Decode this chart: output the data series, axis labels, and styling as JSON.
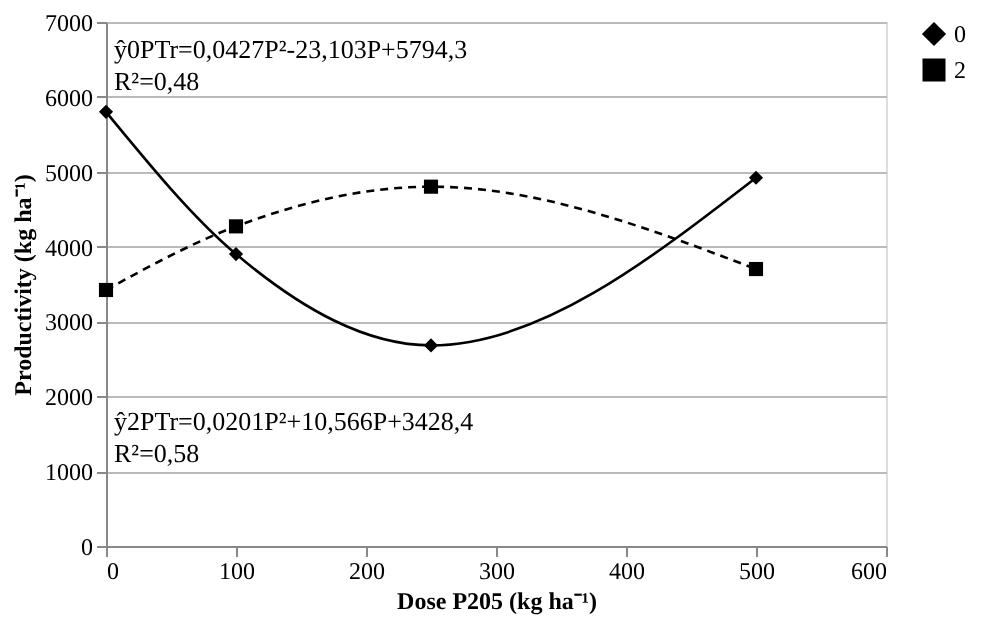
{
  "chart_data": {
    "type": "line",
    "xlabel": "Dose P205  (kg ha⁻¹)",
    "ylabel": "Productivity (kg ha⁻¹)",
    "series": [
      {
        "name": "0",
        "color": "#000000",
        "marker": "diamond",
        "line_style": "solid",
        "x": [
          0,
          100,
          250,
          500
        ],
        "values": [
          5800,
          3900,
          2680,
          4920
        ]
      },
      {
        "name": "2",
        "color": "#000000",
        "marker": "square",
        "line_style": "dashed",
        "x": [
          0,
          100,
          250,
          500
        ],
        "values": [
          3420,
          4270,
          4800,
          3700
        ]
      }
    ],
    "xlim": [
      0,
      600
    ],
    "xticks": [
      0,
      100,
      200,
      300,
      400,
      500,
      600
    ],
    "ylim": [
      0,
      7000
    ],
    "yticks": [
      0,
      1000,
      2000,
      3000,
      4000,
      5000,
      6000,
      7000
    ],
    "grid": "y",
    "legend": "right",
    "annotations": [
      "ŷ0PTr=0,0427P²-23,103P+5794,3",
      "R²=0,48",
      "ŷ2PTr=0,0201P²+10,566P+3428,4",
      "R²=0,58"
    ]
  }
}
